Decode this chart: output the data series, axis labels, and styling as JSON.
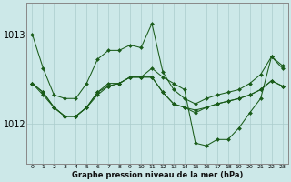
{
  "background_color": "#cce8e8",
  "grid_color": "#aacccc",
  "line_color": "#1a5c1a",
  "xlabel": "Graphe pression niveau de la mer (hPa)",
  "ylim": [
    1011.55,
    1013.35
  ],
  "yticks": [
    1012,
    1013
  ],
  "xlim": [
    -0.5,
    23.5
  ],
  "line1": [
    1013.0,
    1012.62,
    1012.32,
    1012.28,
    1012.28,
    1012.45,
    1012.72,
    1012.82,
    1012.82,
    1012.88,
    1012.85,
    1013.12,
    1012.58,
    1012.38,
    1012.28,
    1012.22,
    1012.28,
    1012.32,
    1012.35,
    1012.38,
    1012.45,
    1012.55,
    1012.75,
    1012.65
  ],
  "line2": [
    1012.45,
    1012.32,
    1012.18,
    1012.08,
    1012.08,
    1012.18,
    1012.35,
    1012.42,
    1012.45,
    1012.52,
    1012.52,
    1012.52,
    1012.35,
    1012.22,
    1012.18,
    1012.15,
    1012.18,
    1012.22,
    1012.25,
    1012.28,
    1012.32,
    1012.38,
    1012.48,
    1012.42
  ],
  "line3": [
    1012.45,
    1012.35,
    1012.18,
    1012.08,
    1012.08,
    1012.18,
    1012.32,
    1012.42,
    1012.45,
    1012.52,
    1012.52,
    1012.52,
    1012.35,
    1012.22,
    1012.18,
    1012.12,
    1012.18,
    1012.22,
    1012.25,
    1012.28,
    1012.32,
    1012.38,
    1012.48,
    1012.42
  ],
  "line4_jagged": [
    1012.45,
    1012.35,
    1012.18,
    1012.08,
    1012.08,
    1012.18,
    1012.35,
    1012.45,
    1012.45,
    1012.52,
    1012.52,
    1012.62,
    1012.52,
    1012.45,
    1012.38,
    1011.78,
    1011.75,
    1011.82,
    1011.82,
    1011.95,
    1012.12,
    1012.28,
    1012.75,
    1012.62
  ]
}
